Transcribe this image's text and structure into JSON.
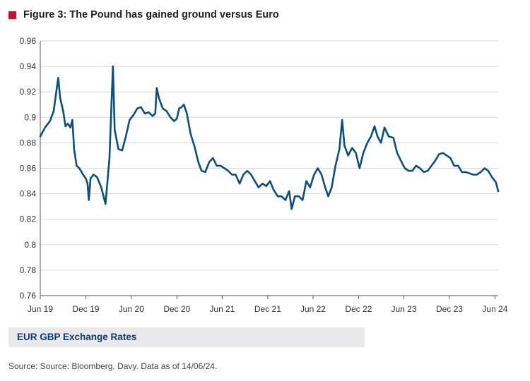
{
  "figure": {
    "title": "Figure 3: The Pound has gained ground versus Euro",
    "caption": "EUR GBP Exchange Rates",
    "source": "Source: Source: Bloomberg, Davy. Data as of 14/06/24.",
    "marker_color": "#c8102e",
    "caption_color": "#0b3a6e"
  },
  "chart_data": {
    "type": "line",
    "title": "",
    "xlabel": "",
    "ylabel": "",
    "ylim": [
      0.76,
      0.96
    ],
    "yticks": [
      0.76,
      0.78,
      0.8,
      0.82,
      0.84,
      0.86,
      0.88,
      0.9,
      0.92,
      0.94,
      0.96
    ],
    "ytick_labels": [
      "0.76",
      "0.78",
      "0.8",
      "0.82",
      "0.84",
      "0.86",
      "0.88",
      "0.9",
      "0.92",
      "0.94",
      "0.96"
    ],
    "xlim": [
      "2019-06-01",
      "2024-06-14"
    ],
    "xtick_dates": [
      "2019-06-01",
      "2019-12-01",
      "2020-06-01",
      "2020-12-01",
      "2021-06-01",
      "2021-12-01",
      "2022-06-01",
      "2022-12-01",
      "2023-06-01",
      "2023-12-01",
      "2024-06-01"
    ],
    "xtick_labels": [
      "Jun 19",
      "Dec 19",
      "Jun 20",
      "Dec 20",
      "Jun 21",
      "Dec 21",
      "Jun 22",
      "Dec 22",
      "Jun 23",
      "Dec 23",
      "Jun 24"
    ],
    "grid": "horizontal",
    "legend": "none",
    "series": [
      {
        "color": "#0b4f7c",
        "points": [
          [
            "2019-06-01",
            0.885
          ],
          [
            "2019-06-20",
            0.892
          ],
          [
            "2019-07-10",
            0.897
          ],
          [
            "2019-07-25",
            0.905
          ],
          [
            "2019-08-05",
            0.921
          ],
          [
            "2019-08-12",
            0.931
          ],
          [
            "2019-08-20",
            0.915
          ],
          [
            "2019-09-01",
            0.905
          ],
          [
            "2019-09-10",
            0.893
          ],
          [
            "2019-09-20",
            0.895
          ],
          [
            "2019-09-30",
            0.892
          ],
          [
            "2019-10-08",
            0.898
          ],
          [
            "2019-10-15",
            0.875
          ],
          [
            "2019-10-25",
            0.862
          ],
          [
            "2019-11-05",
            0.86
          ],
          [
            "2019-11-20",
            0.855
          ],
          [
            "2019-12-01",
            0.852
          ],
          [
            "2019-12-08",
            0.848
          ],
          [
            "2019-12-13",
            0.835
          ],
          [
            "2019-12-20",
            0.852
          ],
          [
            "2020-01-01",
            0.855
          ],
          [
            "2020-01-15",
            0.853
          ],
          [
            "2020-02-01",
            0.845
          ],
          [
            "2020-02-18",
            0.832
          ],
          [
            "2020-03-05",
            0.868
          ],
          [
            "2020-03-12",
            0.905
          ],
          [
            "2020-03-19",
            0.94
          ],
          [
            "2020-03-26",
            0.89
          ],
          [
            "2020-04-10",
            0.875
          ],
          [
            "2020-04-25",
            0.874
          ],
          [
            "2020-05-10",
            0.885
          ],
          [
            "2020-05-25",
            0.898
          ],
          [
            "2020-06-10",
            0.902
          ],
          [
            "2020-06-25",
            0.907
          ],
          [
            "2020-07-10",
            0.908
          ],
          [
            "2020-07-25",
            0.903
          ],
          [
            "2020-08-10",
            0.904
          ],
          [
            "2020-08-25",
            0.901
          ],
          [
            "2020-09-05",
            0.903
          ],
          [
            "2020-09-11",
            0.923
          ],
          [
            "2020-09-20",
            0.915
          ],
          [
            "2020-10-05",
            0.907
          ],
          [
            "2020-10-20",
            0.905
          ],
          [
            "2020-11-05",
            0.9
          ],
          [
            "2020-11-20",
            0.897
          ],
          [
            "2020-12-01",
            0.899
          ],
          [
            "2020-12-10",
            0.907
          ],
          [
            "2020-12-20",
            0.908
          ],
          [
            "2020-12-29",
            0.91
          ],
          [
            "2021-01-10",
            0.903
          ],
          [
            "2021-01-25",
            0.887
          ],
          [
            "2021-02-10",
            0.877
          ],
          [
            "2021-02-25",
            0.865
          ],
          [
            "2021-03-10",
            0.858
          ],
          [
            "2021-03-25",
            0.857
          ],
          [
            "2021-04-10",
            0.865
          ],
          [
            "2021-04-25",
            0.868
          ],
          [
            "2021-05-10",
            0.862
          ],
          [
            "2021-05-25",
            0.862
          ],
          [
            "2021-06-10",
            0.86
          ],
          [
            "2021-06-25",
            0.858
          ],
          [
            "2021-07-10",
            0.855
          ],
          [
            "2021-07-25",
            0.855
          ],
          [
            "2021-08-10",
            0.848
          ],
          [
            "2021-08-25",
            0.855
          ],
          [
            "2021-09-10",
            0.858
          ],
          [
            "2021-09-25",
            0.855
          ],
          [
            "2021-10-10",
            0.85
          ],
          [
            "2021-10-25",
            0.845
          ],
          [
            "2021-11-10",
            0.848
          ],
          [
            "2021-11-25",
            0.846
          ],
          [
            "2021-12-10",
            0.85
          ],
          [
            "2021-12-25",
            0.843
          ],
          [
            "2022-01-10",
            0.838
          ],
          [
            "2022-01-25",
            0.838
          ],
          [
            "2022-02-10",
            0.835
          ],
          [
            "2022-02-25",
            0.842
          ],
          [
            "2022-03-07",
            0.828
          ],
          [
            "2022-03-20",
            0.838
          ],
          [
            "2022-04-05",
            0.838
          ],
          [
            "2022-04-20",
            0.835
          ],
          [
            "2022-05-05",
            0.85
          ],
          [
            "2022-05-20",
            0.845
          ],
          [
            "2022-06-05",
            0.855
          ],
          [
            "2022-06-20",
            0.86
          ],
          [
            "2022-07-05",
            0.855
          ],
          [
            "2022-07-20",
            0.845
          ],
          [
            "2022-08-01",
            0.838
          ],
          [
            "2022-08-15",
            0.845
          ],
          [
            "2022-08-30",
            0.862
          ],
          [
            "2022-09-15",
            0.875
          ],
          [
            "2022-09-26",
            0.898
          ],
          [
            "2022-10-05",
            0.878
          ],
          [
            "2022-10-20",
            0.87
          ],
          [
            "2022-11-05",
            0.876
          ],
          [
            "2022-11-20",
            0.872
          ],
          [
            "2022-12-05",
            0.86
          ],
          [
            "2022-12-20",
            0.872
          ],
          [
            "2023-01-05",
            0.88
          ],
          [
            "2023-01-20",
            0.885
          ],
          [
            "2023-02-03",
            0.893
          ],
          [
            "2023-02-15",
            0.885
          ],
          [
            "2023-03-01",
            0.88
          ],
          [
            "2023-03-15",
            0.892
          ],
          [
            "2023-04-01",
            0.885
          ],
          [
            "2023-04-20",
            0.884
          ],
          [
            "2023-05-05",
            0.872
          ],
          [
            "2023-05-20",
            0.866
          ],
          [
            "2023-06-05",
            0.86
          ],
          [
            "2023-06-20",
            0.858
          ],
          [
            "2023-07-05",
            0.858
          ],
          [
            "2023-07-20",
            0.862
          ],
          [
            "2023-08-05",
            0.86
          ],
          [
            "2023-08-20",
            0.857
          ],
          [
            "2023-09-05",
            0.858
          ],
          [
            "2023-09-20",
            0.862
          ],
          [
            "2023-10-05",
            0.866
          ],
          [
            "2023-10-20",
            0.871
          ],
          [
            "2023-11-05",
            0.872
          ],
          [
            "2023-11-20",
            0.87
          ],
          [
            "2023-12-05",
            0.868
          ],
          [
            "2023-12-20",
            0.862
          ],
          [
            "2024-01-05",
            0.862
          ],
          [
            "2024-01-20",
            0.857
          ],
          [
            "2024-02-05",
            0.857
          ],
          [
            "2024-02-20",
            0.856
          ],
          [
            "2024-03-05",
            0.855
          ],
          [
            "2024-03-20",
            0.855
          ],
          [
            "2024-04-05",
            0.857
          ],
          [
            "2024-04-20",
            0.86
          ],
          [
            "2024-05-05",
            0.858
          ],
          [
            "2024-05-20",
            0.853
          ],
          [
            "2024-06-05",
            0.849
          ],
          [
            "2024-06-14",
            0.842
          ]
        ]
      }
    ]
  }
}
